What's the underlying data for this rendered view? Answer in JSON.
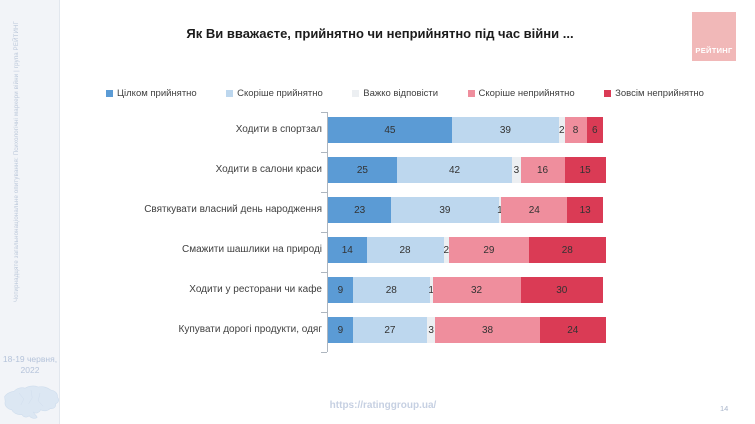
{
  "sidebar": {
    "note": "Чотирнадцяте загальнонаціональне опитування: Психологічні маркери війни | група РЕЙТИНГ",
    "date_lines": [
      "18-19 червня,",
      "2022"
    ]
  },
  "header": {
    "logo_text": "РЕЙТИНГ",
    "logo_color": "#f1b8b8"
  },
  "footer": {
    "url": "https://ratinggroup.ua/",
    "page_number": "14"
  },
  "chart_data": {
    "type": "bar",
    "orientation": "horizontal",
    "stacked": true,
    "title": "Як Ви вважаєте, прийнятно чи неприйнятно під час війни ...",
    "categories": [
      "Ходити в спортзал",
      "Ходити в салони краси",
      "Святкувати власний день народження",
      "Смажити шашлики на природі",
      "Ходити у ресторани чи кафе",
      "Купувати дорогі продукти, одяг"
    ],
    "series": [
      {
        "name": "Цілком прийнятно",
        "color": "#5B9BD5",
        "values": [
          45,
          25,
          23,
          14,
          9,
          9
        ]
      },
      {
        "name": "Скоріше прийнятно",
        "color": "#BDD7EE",
        "values": [
          39,
          42,
          39,
          28,
          28,
          27
        ]
      },
      {
        "name": "Важко відповісти",
        "color": "#ECEFF2",
        "values": [
          2,
          3,
          1,
          2,
          1,
          3
        ]
      },
      {
        "name": "Скоріше неприйнятно",
        "color": "#EF8E9D",
        "values": [
          8,
          16,
          24,
          29,
          32,
          38
        ]
      },
      {
        "name": "Зовсім неприйнятно",
        "color": "#DA3B55",
        "values": [
          6,
          15,
          13,
          28,
          30,
          24
        ]
      }
    ],
    "xlim": [
      0,
      100
    ],
    "legend_position": "top",
    "value_labels": true,
    "grid": false
  }
}
